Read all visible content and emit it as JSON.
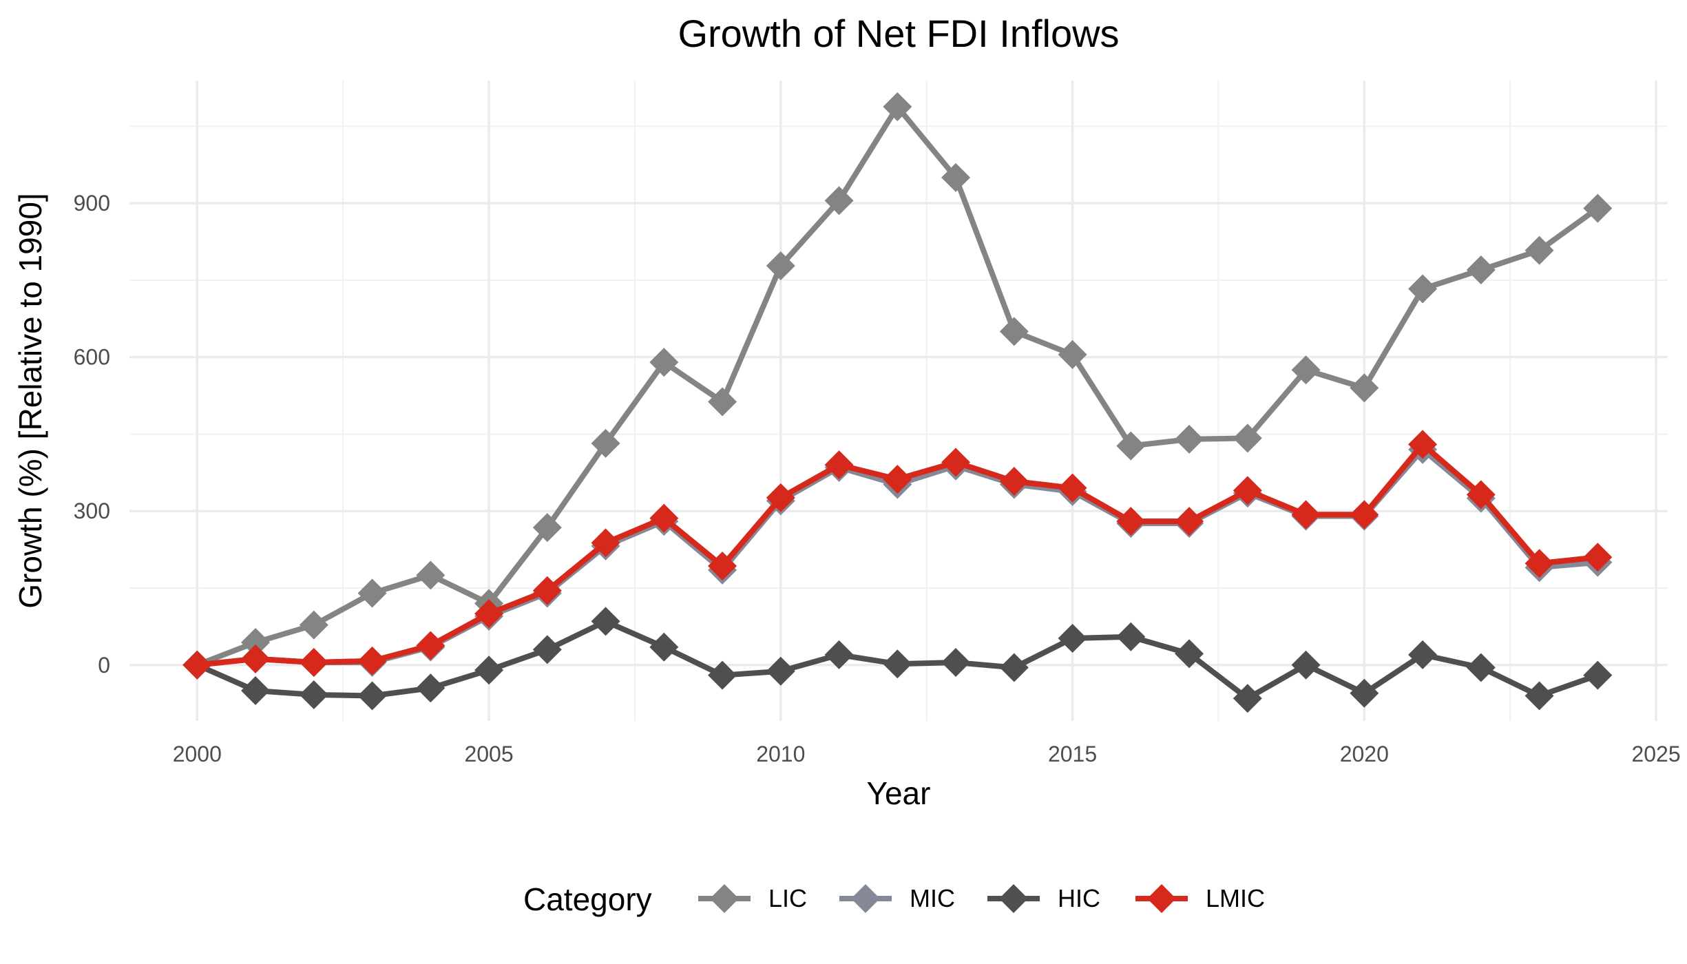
{
  "chart_data": {
    "type": "line",
    "title": "Growth of Net FDI Inflows",
    "xlabel": "Year",
    "ylabel": "Growth (%) [Relative to 1990]",
    "xlim": [
      1998.84,
      2025.2
    ],
    "ylim": [
      -109,
      1139
    ],
    "xticks": [
      2000,
      2005,
      2010,
      2015,
      2020,
      2025
    ],
    "yticks": [
      0,
      300,
      600,
      900
    ],
    "grid": true,
    "legend": {
      "title": "Category",
      "position": "bottom"
    },
    "x": [
      2000,
      2001,
      2002,
      2003,
      2004,
      2005,
      2006,
      2007,
      2008,
      2009,
      2010,
      2011,
      2012,
      2013,
      2014,
      2015,
      2016,
      2017,
      2018,
      2019,
      2020,
      2021,
      2022,
      2023,
      2024
    ],
    "series": [
      {
        "name": "LIC",
        "color": "#838582",
        "values": [
          0,
          44,
          78,
          140,
          175,
          120,
          268,
          432,
          590,
          513,
          778,
          905,
          1088,
          950,
          650,
          605,
          427,
          440,
          442,
          575,
          540,
          733,
          770,
          808,
          890
        ]
      },
      {
        "name": "MIC",
        "color": "#858896",
        "values": [
          0,
          12,
          5,
          5,
          35,
          95,
          140,
          232,
          280,
          185,
          320,
          385,
          352,
          388,
          352,
          338,
          276,
          276,
          335,
          290,
          290,
          420,
          325,
          190,
          200
        ]
      },
      {
        "name": "HIC",
        "color": "#4f4f4f",
        "values": [
          0,
          -50,
          -58,
          -60,
          -45,
          -10,
          30,
          85,
          35,
          -20,
          -12,
          20,
          2,
          5,
          -5,
          52,
          55,
          22,
          -65,
          0,
          -55,
          20,
          -5,
          -60,
          -20
        ]
      },
      {
        "name": "LMIC",
        "color": "#d7281c",
        "values": [
          0,
          12,
          5,
          8,
          38,
          100,
          145,
          238,
          286,
          193,
          326,
          390,
          362,
          395,
          358,
          345,
          280,
          280,
          340,
          293,
          293,
          430,
          332,
          198,
          210
        ]
      }
    ]
  }
}
